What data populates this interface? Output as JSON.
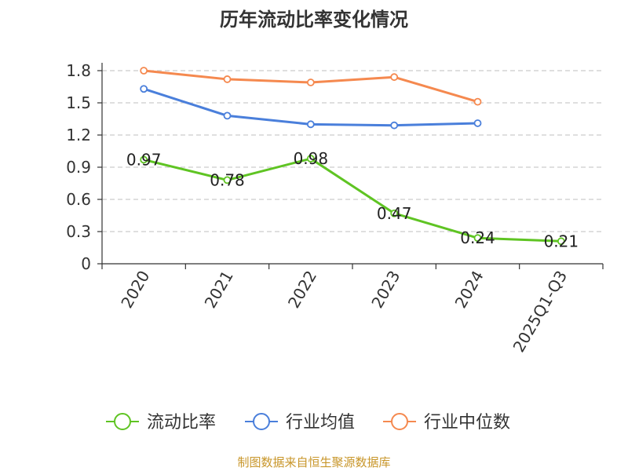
{
  "footer": "制图数据来自恒生聚源数据库",
  "colors": {
    "footer": "#c8962a",
    "grid": "#cccccc",
    "axis": "#333333"
  },
  "chart_data": {
    "type": "line",
    "title": "历年流动比率变化情况",
    "xlabel": "",
    "ylabel": "",
    "categories": [
      "2020",
      "2021",
      "2022",
      "2023",
      "2024",
      "2025Q1-Q3"
    ],
    "ylim": [
      0,
      1.8
    ],
    "yticks": [
      "0",
      "0.3",
      "0.6",
      "0.9",
      "1.2",
      "1.5",
      "1.8"
    ],
    "ytick_values": [
      0,
      0.3,
      0.6,
      0.9,
      1.2,
      1.5,
      1.8
    ],
    "grid": true,
    "legend_position": "bottom",
    "series": [
      {
        "name": "流动比率",
        "color": "#5fc423",
        "values": [
          0.97,
          0.78,
          0.98,
          0.47,
          0.24,
          0.21
        ],
        "labels": [
          "0.97",
          "0.78",
          "0.98",
          "0.47",
          "0.24",
          "0.21"
        ]
      },
      {
        "name": "行业均值",
        "color": "#4a7fdb",
        "values": [
          1.63,
          1.38,
          1.3,
          1.29,
          1.31,
          null
        ]
      },
      {
        "name": "行业中位数",
        "color": "#f5894f",
        "values": [
          1.8,
          1.72,
          1.69,
          1.74,
          1.51,
          null
        ]
      }
    ]
  }
}
